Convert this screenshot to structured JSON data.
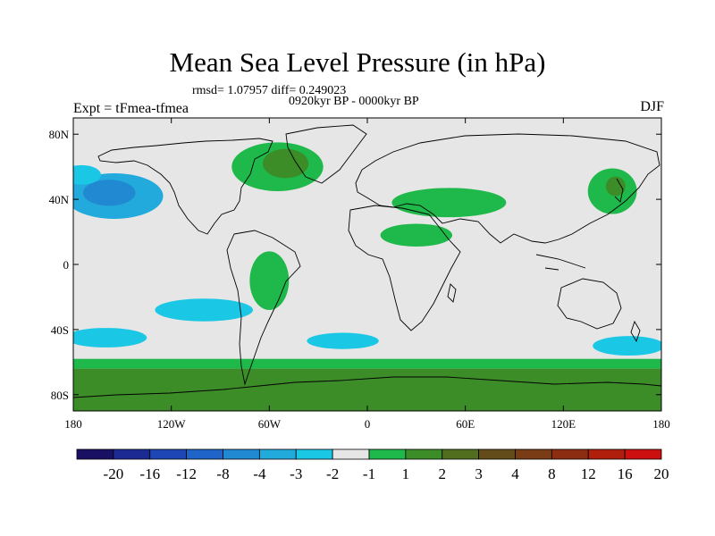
{
  "chart_data": {
    "type": "heatmap",
    "title": "Mean Sea Level Pressure (in hPa)",
    "stats_text": "rmsd= 1.07957 diff= 0.249023",
    "period_text": "0920kyr BP - 0000kyr BP",
    "experiment_text": "Expt = tFmea-tfmea",
    "season_text": "DJF",
    "x_axis": {
      "range": [
        -180,
        180
      ],
      "ticks": [
        -180,
        -120,
        -60,
        0,
        60,
        120,
        180
      ],
      "tick_labels": [
        "180",
        "120W",
        "60W",
        "0",
        "60E",
        "120E",
        "180"
      ]
    },
    "y_axis": {
      "range": [
        -90,
        90
      ],
      "ticks": [
        80,
        40,
        0,
        -40,
        -80
      ],
      "tick_labels": [
        "80N",
        "40N",
        "0",
        "40S",
        "80S"
      ]
    },
    "colorbar": {
      "colors": [
        "#1a1063",
        "#1c2a94",
        "#1e46b4",
        "#1f64c8",
        "#2188d2",
        "#22aadc",
        "#1ac8e6",
        "#e6e6e6",
        "#1fb84a",
        "#3c8c28",
        "#506e1e",
        "#644c1a",
        "#7a3c14",
        "#8c2c10",
        "#b01e0c",
        "#cc1010"
      ],
      "levels": [
        "-20",
        "-16",
        "-12",
        "-8",
        "-4",
        "-3",
        "-2",
        "-1",
        "1",
        "2",
        "3",
        "4",
        "8",
        "12",
        "16",
        "20"
      ]
    },
    "regions": [
      {
        "name": "north-pacific-low",
        "lon": -155,
        "lat": 42,
        "rlon": 30,
        "rlat": 14,
        "color": "#22aadc"
      },
      {
        "name": "north-pacific-low-inner",
        "lon": -158,
        "lat": 44,
        "rlon": 16,
        "rlat": 8,
        "color": "#2188d2"
      },
      {
        "name": "north-pacific-tail",
        "lon": -175,
        "lat": 55,
        "rlon": 12,
        "rlat": 6,
        "color": "#1ac8e6"
      },
      {
        "name": "north-atlantic-high",
        "lon": -55,
        "lat": 60,
        "rlon": 28,
        "rlat": 15,
        "color": "#1fb84a"
      },
      {
        "name": "north-atlantic-high-inner",
        "lon": -50,
        "lat": 62,
        "rlon": 14,
        "rlat": 9,
        "color": "#3c8c28"
      },
      {
        "name": "eurasia-high",
        "lon": 50,
        "lat": 38,
        "rlon": 35,
        "rlat": 9,
        "color": "#1fb84a"
      },
      {
        "name": "africa-high",
        "lon": 30,
        "lat": 18,
        "rlon": 22,
        "rlat": 7,
        "color": "#1fb84a"
      },
      {
        "name": "east-asia-high",
        "lon": 150,
        "lat": 45,
        "rlon": 15,
        "rlat": 14,
        "color": "#1fb84a"
      },
      {
        "name": "east-asia-high-inner",
        "lon": 152,
        "lat": 48,
        "rlon": 6,
        "rlat": 6,
        "color": "#3c8c28"
      },
      {
        "name": "south-america-high",
        "lon": -60,
        "lat": -10,
        "rlon": 12,
        "rlat": 18,
        "color": "#1fb84a"
      },
      {
        "name": "south-pacific-band",
        "lon": -100,
        "lat": -28,
        "rlon": 30,
        "rlat": 7,
        "color": "#1ac8e6"
      },
      {
        "name": "south-pacific-west",
        "lon": -160,
        "lat": -45,
        "rlon": 25,
        "rlat": 6,
        "color": "#1ac8e6"
      },
      {
        "name": "south-atlantic-low",
        "lon": -15,
        "lat": -47,
        "rlon": 22,
        "rlat": 5,
        "color": "#1ac8e6"
      },
      {
        "name": "south-indian-low",
        "lon": 160,
        "lat": -50,
        "rlon": 22,
        "rlat": 6,
        "color": "#1ac8e6"
      }
    ],
    "bands": [
      {
        "name": "southern-ocean-band",
        "lat_top": -58,
        "lat_bottom": -64,
        "color": "#1fb84a"
      },
      {
        "name": "antarctic-band",
        "lat_top": -64,
        "lat_bottom": -90,
        "color": "#3c8c28"
      }
    ]
  }
}
